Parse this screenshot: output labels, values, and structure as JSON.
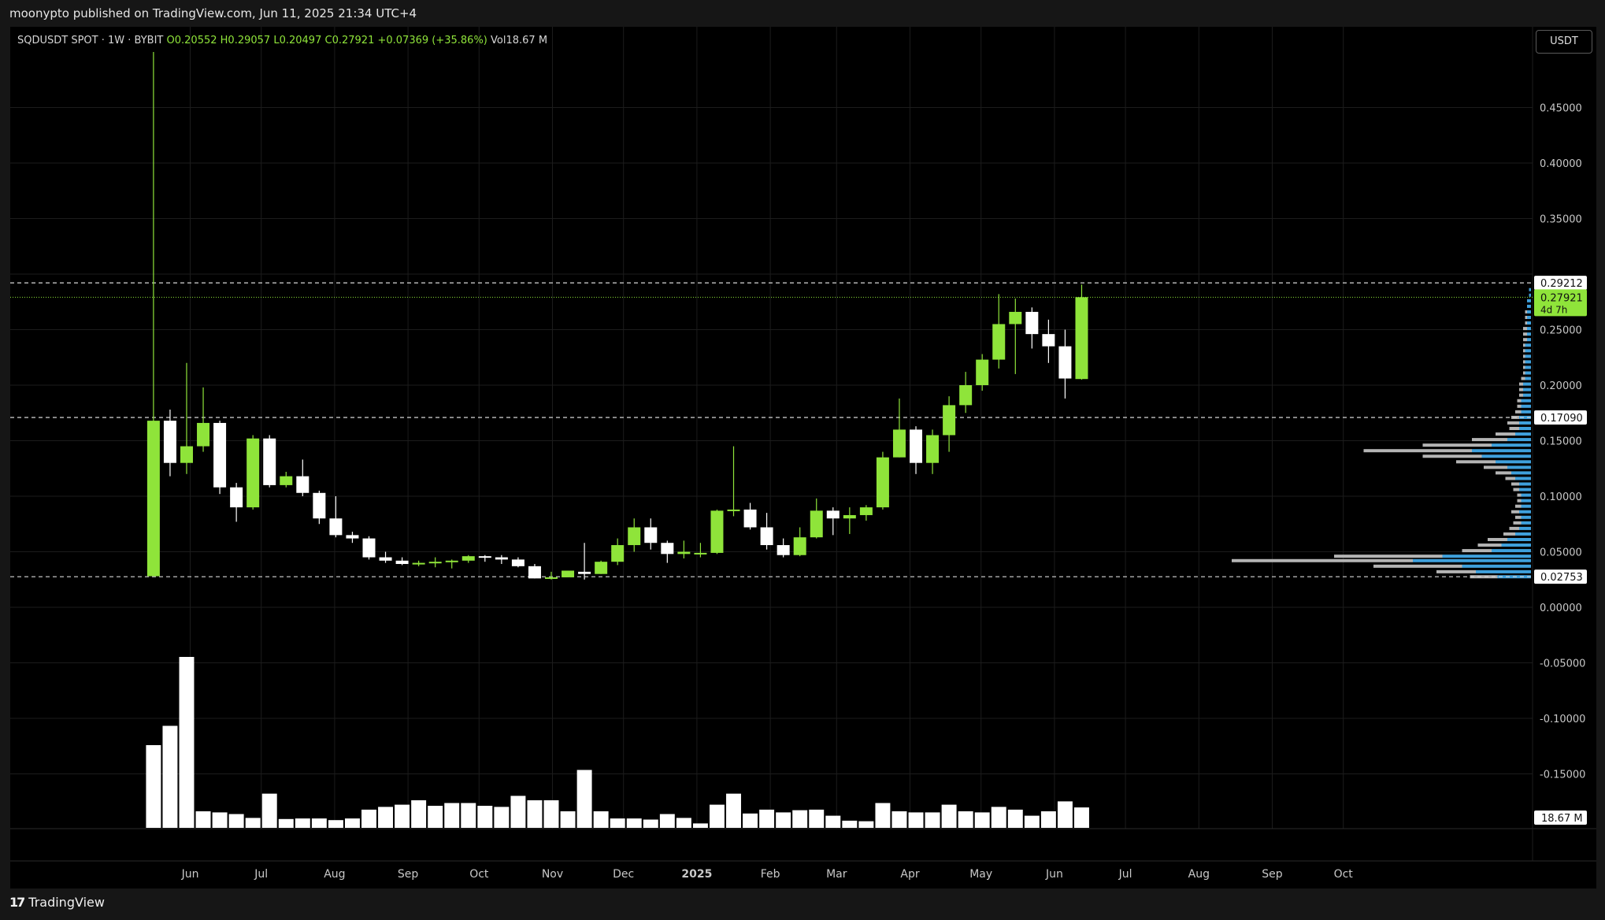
{
  "header": {
    "published_by": "moonypto published on TradingView.com, Jun 11, 2025 21:34 UTC+4",
    "symbol": "SQDUSDT SPOT · 1W · BYBIT",
    "open": "O0.20552",
    "high": "H0.29057",
    "low": "L0.20497",
    "close": "C0.27921",
    "change": "+0.07369 (+35.86%)",
    "volume": "Vol18.67 M",
    "currency_button": "USDT"
  },
  "footer": {
    "brand": "TradingView"
  },
  "colors": {
    "up": "#8fe43a",
    "down": "#ffffff",
    "background": "#000000",
    "grid": "#1c1c1c",
    "axis_text": "#c8c8c8",
    "vp_blue": "#3fa0dc",
    "vp_gray": "#b4b4b4"
  },
  "chart_data": {
    "type": "candlestick",
    "timeframe": "1W",
    "yaxis": {
      "ticks": [
        0.45,
        0.4,
        0.35,
        0.25,
        0.2,
        0.15,
        0.1,
        0.05,
        0.0,
        -0.05,
        -0.1,
        -0.15
      ],
      "tick_labels": [
        "0.45000",
        "0.40000",
        "0.35000",
        "0.25000",
        "0.20000",
        "0.15000",
        "0.10000",
        "0.05000",
        "0.00000",
        "-0.05000",
        "-0.10000",
        "-0.15000"
      ],
      "range": [
        -0.2,
        0.5
      ]
    },
    "xaxis": {
      "labels": [
        {
          "text": "Jun",
          "date": "2024-06-01"
        },
        {
          "text": "Jul",
          "date": "2024-07-01"
        },
        {
          "text": "Aug",
          "date": "2024-08-01"
        },
        {
          "text": "Sep",
          "date": "2024-09-01"
        },
        {
          "text": "Oct",
          "date": "2024-10-01"
        },
        {
          "text": "Nov",
          "date": "2024-11-01"
        },
        {
          "text": "Dec",
          "date": "2024-12-01"
        },
        {
          "text": "2025",
          "date": "2025-01-01",
          "bold": true
        },
        {
          "text": "Feb",
          "date": "2025-02-01"
        },
        {
          "text": "Mar",
          "date": "2025-03-01"
        },
        {
          "text": "Apr",
          "date": "2025-04-01"
        },
        {
          "text": "May",
          "date": "2025-05-01"
        },
        {
          "text": "Jun",
          "date": "2025-06-01"
        },
        {
          "text": "Jul",
          "date": "2025-07-01"
        },
        {
          "text": "Aug",
          "date": "2025-08-01"
        },
        {
          "text": "Sep",
          "date": "2025-09-01"
        },
        {
          "text": "Oct",
          "date": "2025-10-01"
        }
      ],
      "range": [
        "2024-03-17",
        "2025-10-18"
      ]
    },
    "price_lines": [
      {
        "label": "0.29212",
        "value": 0.29212,
        "style": "dashed"
      },
      {
        "label": "0.17090",
        "value": 0.1709,
        "style": "dashed"
      },
      {
        "label": "0.02753",
        "value": 0.02753,
        "style": "dashed"
      }
    ],
    "last_price": {
      "label": "0.27921",
      "value": 0.27921,
      "countdown": "4d 7h"
    },
    "volume_last_label": "18.67 M",
    "candles": [
      {
        "date": "2024-05-13",
        "o": 0.028,
        "h": 0.5,
        "l": 0.028,
        "c": 0.168,
        "v": 1.5
      },
      {
        "date": "2024-05-20",
        "o": 0.168,
        "h": 0.178,
        "l": 0.118,
        "c": 0.13,
        "v": 1.85
      },
      {
        "date": "2024-05-27",
        "o": 0.13,
        "h": 0.22,
        "l": 0.12,
        "c": 0.145,
        "v": 3.1
      },
      {
        "date": "2024-06-03",
        "o": 0.145,
        "h": 0.198,
        "l": 0.14,
        "c": 0.166,
        "v": 0.3
      },
      {
        "date": "2024-06-10",
        "o": 0.166,
        "h": 0.168,
        "l": 0.102,
        "c": 0.108,
        "v": 0.28
      },
      {
        "date": "2024-06-17",
        "o": 0.108,
        "h": 0.112,
        "l": 0.077,
        "c": 0.09,
        "v": 0.25
      },
      {
        "date": "2024-06-24",
        "o": 0.09,
        "h": 0.155,
        "l": 0.088,
        "c": 0.152,
        "v": 0.18
      },
      {
        "date": "2024-07-01",
        "o": 0.152,
        "h": 0.155,
        "l": 0.108,
        "c": 0.11,
        "v": 0.62
      },
      {
        "date": "2024-07-08",
        "o": 0.11,
        "h": 0.122,
        "l": 0.108,
        "c": 0.118,
        "v": 0.16
      },
      {
        "date": "2024-07-15",
        "o": 0.118,
        "h": 0.133,
        "l": 0.1,
        "c": 0.103,
        "v": 0.17
      },
      {
        "date": "2024-07-22",
        "o": 0.103,
        "h": 0.105,
        "l": 0.075,
        "c": 0.08,
        "v": 0.17
      },
      {
        "date": "2024-07-29",
        "o": 0.08,
        "h": 0.1,
        "l": 0.063,
        "c": 0.065,
        "v": 0.14
      },
      {
        "date": "2024-08-05",
        "o": 0.065,
        "h": 0.068,
        "l": 0.058,
        "c": 0.062,
        "v": 0.17
      },
      {
        "date": "2024-08-12",
        "o": 0.062,
        "h": 0.064,
        "l": 0.043,
        "c": 0.045,
        "v": 0.33
      },
      {
        "date": "2024-08-19",
        "o": 0.045,
        "h": 0.05,
        "l": 0.04,
        "c": 0.042,
        "v": 0.38
      },
      {
        "date": "2024-08-26",
        "o": 0.042,
        "h": 0.045,
        "l": 0.038,
        "c": 0.039,
        "v": 0.42
      },
      {
        "date": "2024-09-02",
        "o": 0.039,
        "h": 0.042,
        "l": 0.037,
        "c": 0.04,
        "v": 0.5
      },
      {
        "date": "2024-09-09",
        "o": 0.04,
        "h": 0.045,
        "l": 0.036,
        "c": 0.041,
        "v": 0.4
      },
      {
        "date": "2024-09-16",
        "o": 0.041,
        "h": 0.043,
        "l": 0.035,
        "c": 0.042,
        "v": 0.45
      },
      {
        "date": "2024-09-23",
        "o": 0.042,
        "h": 0.047,
        "l": 0.04,
        "c": 0.046,
        "v": 0.45
      },
      {
        "date": "2024-09-30",
        "o": 0.046,
        "h": 0.047,
        "l": 0.041,
        "c": 0.045,
        "v": 0.4
      },
      {
        "date": "2024-10-07",
        "o": 0.045,
        "h": 0.047,
        "l": 0.039,
        "c": 0.043,
        "v": 0.38
      },
      {
        "date": "2024-10-14",
        "o": 0.043,
        "h": 0.045,
        "l": 0.036,
        "c": 0.037,
        "v": 0.58
      },
      {
        "date": "2024-10-21",
        "o": 0.037,
        "h": 0.039,
        "l": 0.026,
        "c": 0.026,
        "v": 0.5
      },
      {
        "date": "2024-10-28",
        "o": 0.026,
        "h": 0.032,
        "l": 0.025,
        "c": 0.027,
        "v": 0.5
      },
      {
        "date": "2024-11-04",
        "o": 0.027,
        "h": 0.033,
        "l": 0.027,
        "c": 0.033,
        "v": 0.3
      },
      {
        "date": "2024-11-11",
        "o": 0.032,
        "h": 0.058,
        "l": 0.025,
        "c": 0.03,
        "v": 1.05
      },
      {
        "date": "2024-11-18",
        "o": 0.03,
        "h": 0.042,
        "l": 0.03,
        "c": 0.041,
        "v": 0.3
      },
      {
        "date": "2024-11-25",
        "o": 0.041,
        "h": 0.062,
        "l": 0.038,
        "c": 0.056,
        "v": 0.17
      },
      {
        "date": "2024-12-02",
        "o": 0.056,
        "h": 0.08,
        "l": 0.05,
        "c": 0.072,
        "v": 0.17
      },
      {
        "date": "2024-12-09",
        "o": 0.072,
        "h": 0.08,
        "l": 0.052,
        "c": 0.058,
        "v": 0.15
      },
      {
        "date": "2024-12-16",
        "o": 0.058,
        "h": 0.06,
        "l": 0.04,
        "c": 0.048,
        "v": 0.25
      },
      {
        "date": "2024-12-23",
        "o": 0.048,
        "h": 0.06,
        "l": 0.044,
        "c": 0.05,
        "v": 0.18
      },
      {
        "date": "2024-12-30",
        "o": 0.048,
        "h": 0.058,
        "l": 0.045,
        "c": 0.049,
        "v": 0.08
      },
      {
        "date": "2025-01-06",
        "o": 0.049,
        "h": 0.088,
        "l": 0.048,
        "c": 0.087,
        "v": 0.42
      },
      {
        "date": "2025-01-13",
        "o": 0.087,
        "h": 0.145,
        "l": 0.082,
        "c": 0.088,
        "v": 0.62
      },
      {
        "date": "2025-01-20",
        "o": 0.088,
        "h": 0.094,
        "l": 0.07,
        "c": 0.072,
        "v": 0.26
      },
      {
        "date": "2025-01-27",
        "o": 0.072,
        "h": 0.085,
        "l": 0.052,
        "c": 0.056,
        "v": 0.33
      },
      {
        "date": "2025-02-03",
        "o": 0.056,
        "h": 0.062,
        "l": 0.045,
        "c": 0.047,
        "v": 0.28
      },
      {
        "date": "2025-02-10",
        "o": 0.047,
        "h": 0.072,
        "l": 0.046,
        "c": 0.063,
        "v": 0.32
      },
      {
        "date": "2025-02-17",
        "o": 0.063,
        "h": 0.098,
        "l": 0.062,
        "c": 0.087,
        "v": 0.33
      },
      {
        "date": "2025-02-24",
        "o": 0.087,
        "h": 0.09,
        "l": 0.065,
        "c": 0.08,
        "v": 0.22
      },
      {
        "date": "2025-03-03",
        "o": 0.08,
        "h": 0.09,
        "l": 0.066,
        "c": 0.083,
        "v": 0.13
      },
      {
        "date": "2025-03-10",
        "o": 0.083,
        "h": 0.092,
        "l": 0.078,
        "c": 0.09,
        "v": 0.12
      },
      {
        "date": "2025-03-17",
        "o": 0.09,
        "h": 0.14,
        "l": 0.088,
        "c": 0.135,
        "v": 0.45
      },
      {
        "date": "2025-03-24",
        "o": 0.135,
        "h": 0.188,
        "l": 0.135,
        "c": 0.16,
        "v": 0.3
      },
      {
        "date": "2025-03-31",
        "o": 0.16,
        "h": 0.163,
        "l": 0.12,
        "c": 0.13,
        "v": 0.28
      },
      {
        "date": "2025-04-07",
        "o": 0.13,
        "h": 0.16,
        "l": 0.12,
        "c": 0.155,
        "v": 0.28
      },
      {
        "date": "2025-04-14",
        "o": 0.155,
        "h": 0.19,
        "l": 0.14,
        "c": 0.182,
        "v": 0.42
      },
      {
        "date": "2025-04-21",
        "o": 0.182,
        "h": 0.212,
        "l": 0.175,
        "c": 0.2,
        "v": 0.3
      },
      {
        "date": "2025-04-28",
        "o": 0.2,
        "h": 0.228,
        "l": 0.195,
        "c": 0.223,
        "v": 0.28
      },
      {
        "date": "2025-05-05",
        "o": 0.223,
        "h": 0.282,
        "l": 0.215,
        "c": 0.255,
        "v": 0.38
      },
      {
        "date": "2025-05-12",
        "o": 0.255,
        "h": 0.278,
        "l": 0.21,
        "c": 0.266,
        "v": 0.33
      },
      {
        "date": "2025-05-19",
        "o": 0.266,
        "h": 0.27,
        "l": 0.233,
        "c": 0.246,
        "v": 0.22
      },
      {
        "date": "2025-05-26",
        "o": 0.246,
        "h": 0.259,
        "l": 0.22,
        "c": 0.235,
        "v": 0.3
      },
      {
        "date": "2025-06-02",
        "o": 0.235,
        "h": 0.25,
        "l": 0.188,
        "c": 0.206,
        "v": 0.48
      },
      {
        "date": "2025-06-09",
        "o": 0.20552,
        "h": 0.29057,
        "l": 0.20497,
        "c": 0.27921,
        "v": 0.37
      }
    ],
    "volume_profile_note": "horizontal histogram on right edge, blue=up volume, gray=down volume",
    "volume_profile": [
      {
        "p": 0.0275,
        "blue": 0.17,
        "gray": 0.14
      },
      {
        "p": 0.032,
        "blue": 0.28,
        "gray": 0.2
      },
      {
        "p": 0.037,
        "blue": 0.35,
        "gray": 0.45
      },
      {
        "p": 0.042,
        "blue": 0.6,
        "gray": 0.92
      },
      {
        "p": 0.046,
        "blue": 0.45,
        "gray": 0.55
      },
      {
        "p": 0.051,
        "blue": 0.2,
        "gray": 0.15
      },
      {
        "p": 0.056,
        "blue": 0.15,
        "gray": 0.12
      },
      {
        "p": 0.061,
        "blue": 0.12,
        "gray": 0.1
      },
      {
        "p": 0.066,
        "blue": 0.08,
        "gray": 0.06
      },
      {
        "p": 0.071,
        "blue": 0.06,
        "gray": 0.05
      },
      {
        "p": 0.076,
        "blue": 0.05,
        "gray": 0.04
      },
      {
        "p": 0.081,
        "blue": 0.05,
        "gray": 0.03
      },
      {
        "p": 0.086,
        "blue": 0.06,
        "gray": 0.04
      },
      {
        "p": 0.091,
        "blue": 0.05,
        "gray": 0.03
      },
      {
        "p": 0.096,
        "blue": 0.05,
        "gray": 0.02
      },
      {
        "p": 0.101,
        "blue": 0.05,
        "gray": 0.02
      },
      {
        "p": 0.106,
        "blue": 0.06,
        "gray": 0.03
      },
      {
        "p": 0.111,
        "blue": 0.06,
        "gray": 0.04
      },
      {
        "p": 0.116,
        "blue": 0.08,
        "gray": 0.05
      },
      {
        "p": 0.121,
        "blue": 0.1,
        "gray": 0.08
      },
      {
        "p": 0.126,
        "blue": 0.12,
        "gray": 0.12
      },
      {
        "p": 0.131,
        "blue": 0.18,
        "gray": 0.2
      },
      {
        "p": 0.136,
        "blue": 0.25,
        "gray": 0.3
      },
      {
        "p": 0.141,
        "blue": 0.3,
        "gray": 0.55
      },
      {
        "p": 0.146,
        "blue": 0.2,
        "gray": 0.35
      },
      {
        "p": 0.151,
        "blue": 0.12,
        "gray": 0.18
      },
      {
        "p": 0.156,
        "blue": 0.08,
        "gray": 0.1
      },
      {
        "p": 0.161,
        "blue": 0.06,
        "gray": 0.05
      },
      {
        "p": 0.166,
        "blue": 0.06,
        "gray": 0.06
      },
      {
        "p": 0.171,
        "blue": 0.06,
        "gray": 0.04
      },
      {
        "p": 0.176,
        "blue": 0.05,
        "gray": 0.03
      },
      {
        "p": 0.181,
        "blue": 0.05,
        "gray": 0.02
      },
      {
        "p": 0.186,
        "blue": 0.05,
        "gray": 0.02
      },
      {
        "p": 0.191,
        "blue": 0.04,
        "gray": 0.02
      },
      {
        "p": 0.196,
        "blue": 0.04,
        "gray": 0.02
      },
      {
        "p": 0.201,
        "blue": 0.04,
        "gray": 0.02
      },
      {
        "p": 0.206,
        "blue": 0.03,
        "gray": 0.02
      },
      {
        "p": 0.211,
        "blue": 0.03,
        "gray": 0.01
      },
      {
        "p": 0.216,
        "blue": 0.03,
        "gray": 0.01
      },
      {
        "p": 0.221,
        "blue": 0.03,
        "gray": 0.01
      },
      {
        "p": 0.226,
        "blue": 0.03,
        "gray": 0.01
      },
      {
        "p": 0.231,
        "blue": 0.03,
        "gray": 0.01
      },
      {
        "p": 0.236,
        "blue": 0.03,
        "gray": 0.01
      },
      {
        "p": 0.241,
        "blue": 0.02,
        "gray": 0.02
      },
      {
        "p": 0.246,
        "blue": 0.02,
        "gray": 0.02
      },
      {
        "p": 0.251,
        "blue": 0.02,
        "gray": 0.02
      },
      {
        "p": 0.256,
        "blue": 0.02,
        "gray": 0.01
      },
      {
        "p": 0.261,
        "blue": 0.02,
        "gray": 0.01
      },
      {
        "p": 0.266,
        "blue": 0.02,
        "gray": 0.01
      },
      {
        "p": 0.271,
        "blue": 0.02,
        "gray": 0.0
      },
      {
        "p": 0.276,
        "blue": 0.02,
        "gray": 0.0
      },
      {
        "p": 0.281,
        "blue": 0.01,
        "gray": 0.0
      },
      {
        "p": 0.286,
        "blue": 0.01,
        "gray": 0.0
      }
    ]
  }
}
